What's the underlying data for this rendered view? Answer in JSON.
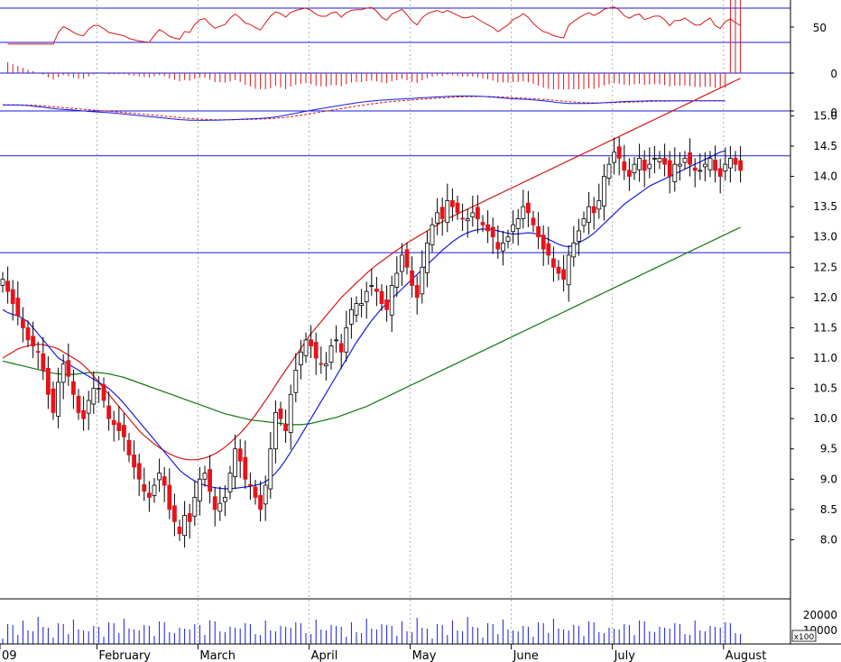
{
  "colors": {
    "up": "#ffffff",
    "down": "#e8121a",
    "outline": "#000000",
    "ma_short": "#1a1adf",
    "ma_mid": "#d81818",
    "ma_long": "#0c7a0c",
    "hline": "#1a1adf",
    "grid": "#b0b0b0",
    "volume": "#1a1adf",
    "rsi": "#d81818",
    "macd_hist": "#d81818",
    "macd": "#1a1adf",
    "macd_signal": "#d81818"
  },
  "chart_data": [
    {
      "panel": "price",
      "type": "candlestick",
      "yticks": [
        "15.0",
        "14.5",
        "14.0",
        "13.5",
        "13.0",
        "12.5",
        "12.0",
        "11.5",
        "11.0",
        "10.5",
        "10.0",
        "9.5",
        "9.0",
        "8.5",
        "8.0"
      ],
      "ylim": [
        7.5,
        15.2
      ],
      "grid": "vertical dotted",
      "x_month_labels": [
        {
          "label": "09",
          "index": 0
        },
        {
          "label": "February",
          "index": 19
        },
        {
          "label": "March",
          "index": 39
        },
        {
          "label": "April",
          "index": 61
        },
        {
          "label": "May",
          "index": 81
        },
        {
          "label": "June",
          "index": 101
        },
        {
          "label": "July",
          "index": 121
        },
        {
          "label": "August",
          "index": 143
        }
      ],
      "horizontal_lines": [
        14.34,
        12.74
      ],
      "close": [
        12.3,
        12.1,
        11.9,
        11.7,
        11.5,
        11.3,
        11.2,
        11.1,
        10.8,
        10.4,
        10.1,
        10.6,
        10.9,
        10.7,
        10.4,
        10.1,
        10.0,
        10.3,
        10.5,
        10.5,
        10.3,
        10.0,
        9.9,
        9.8,
        9.7,
        9.4,
        9.2,
        9.0,
        8.8,
        8.7,
        8.9,
        9.1,
        8.9,
        8.5,
        8.3,
        8.1,
        8.4,
        8.3,
        8.7,
        9.0,
        9.1,
        8.8,
        8.5,
        8.6,
        8.7,
        9.1,
        9.5,
        9.3,
        9.0,
        8.9,
        8.7,
        8.5,
        8.9,
        9.5,
        10.1,
        10.0,
        9.8,
        10.4,
        10.8,
        11.1,
        11.3,
        11.2,
        11.0,
        10.9,
        10.9,
        11.2,
        11.3,
        11.1,
        11.5,
        11.8,
        11.9,
        11.9,
        12.1,
        12.2,
        12.1,
        11.9,
        11.8,
        12.2,
        12.4,
        12.7,
        12.5,
        12.2,
        12.0,
        12.5,
        12.9,
        13.2,
        13.4,
        13.3,
        13.6,
        13.5,
        13.4,
        13.3,
        13.3,
        13.4,
        13.3,
        13.2,
        13.1,
        13.0,
        12.8,
        12.9,
        13.0,
        13.2,
        13.3,
        13.5,
        13.4,
        13.2,
        13.0,
        12.8,
        12.7,
        12.5,
        12.4,
        12.3,
        12.7,
        12.9,
        13.1,
        13.3,
        13.5,
        13.4,
        13.6,
        14.0,
        14.2,
        14.4,
        14.3,
        14.1,
        14.0,
        14.2,
        14.3,
        14.1,
        14.2,
        14.3,
        14.3,
        14.2,
        14.0,
        14.2,
        14.2,
        14.3,
        14.2,
        14.1,
        14.1,
        14.2,
        14.3,
        14.1,
        14.0,
        14.2,
        14.3,
        14.2,
        14.1
      ],
      "ma_short": [
        11.8,
        11.75,
        11.72,
        11.7,
        11.65,
        11.6,
        11.5,
        11.4,
        11.3,
        11.2,
        11.1,
        11.0,
        10.95,
        10.9,
        10.85,
        10.8,
        10.75,
        10.7,
        10.65,
        10.6,
        10.55,
        10.5,
        10.42,
        10.34,
        10.25,
        10.15,
        10.05,
        9.95,
        9.85,
        9.75,
        9.65,
        9.55,
        9.45,
        9.35,
        9.25,
        9.15,
        9.08,
        9.02,
        8.97,
        8.93,
        8.9,
        8.88,
        8.86,
        8.85,
        8.84,
        8.84,
        8.85,
        8.86,
        8.87,
        8.88,
        8.9,
        8.92,
        8.96,
        9.02,
        9.1,
        9.2,
        9.32,
        9.45,
        9.58,
        9.72,
        9.86,
        10.0,
        10.14,
        10.28,
        10.42,
        10.56,
        10.7,
        10.84,
        10.98,
        11.12,
        11.26,
        11.38,
        11.5,
        11.62,
        11.72,
        11.82,
        11.9,
        11.98,
        12.06,
        12.14,
        12.22,
        12.3,
        12.38,
        12.46,
        12.54,
        12.62,
        12.7,
        12.78,
        12.85,
        12.92,
        12.98,
        13.03,
        13.07,
        13.1,
        13.12,
        13.13,
        13.13,
        13.12,
        13.1,
        13.08,
        13.06,
        13.05,
        13.05,
        13.06,
        13.07,
        13.06,
        13.04,
        13.0,
        12.96,
        12.92,
        12.88,
        12.85,
        12.84,
        12.86,
        12.9,
        12.95,
        13.0,
        13.06,
        13.14,
        13.22,
        13.3,
        13.38,
        13.46,
        13.54,
        13.6,
        13.66,
        13.72,
        13.78,
        13.84,
        13.88,
        13.92,
        13.96,
        14.0,
        14.04,
        14.08,
        14.12,
        14.16,
        14.2,
        14.24,
        14.28,
        14.32,
        14.36,
        14.4,
        14.42
      ],
      "ma_mid": [
        11.0,
        11.05,
        11.1,
        11.15,
        11.18,
        11.2,
        11.22,
        11.23,
        11.22,
        11.2,
        11.18,
        11.15,
        11.1,
        11.05,
        11.0,
        10.95,
        10.88,
        10.8,
        10.7,
        10.6,
        10.5,
        10.4,
        10.3,
        10.2,
        10.1,
        10.0,
        9.9,
        9.8,
        9.72,
        9.65,
        9.58,
        9.52,
        9.47,
        9.42,
        9.38,
        9.35,
        9.33,
        9.32,
        9.32,
        9.33,
        9.35,
        9.38,
        9.42,
        9.47,
        9.53,
        9.6,
        9.68,
        9.76,
        9.85,
        9.95,
        10.06,
        10.18,
        10.3,
        10.42,
        10.55,
        10.68,
        10.8,
        10.92,
        11.04,
        11.16,
        11.28,
        11.4,
        11.5,
        11.6,
        11.7,
        11.8,
        11.9,
        12.0,
        12.08,
        12.16,
        12.24,
        12.32,
        12.4,
        12.47,
        12.54,
        12.6,
        12.66,
        12.72,
        12.78,
        12.84,
        12.9,
        12.95,
        13.0,
        13.05,
        13.1,
        13.15,
        13.2,
        13.25,
        13.3,
        13.34,
        13.38,
        13.42,
        13.46,
        13.5,
        13.54,
        13.58,
        13.62,
        13.66,
        13.7,
        13.74,
        13.78,
        13.82,
        13.86,
        13.9,
        13.94,
        13.98,
        14.02,
        14.06,
        14.1,
        14.14,
        14.18,
        14.22,
        14.26,
        14.3,
        14.34,
        14.38,
        14.42,
        14.46,
        14.5,
        14.54,
        14.58,
        14.62,
        14.66,
        14.7,
        14.74,
        14.78,
        14.82,
        14.86,
        14.9,
        14.94,
        14.98,
        15.02,
        15.06,
        15.1,
        15.14,
        15.18,
        15.22,
        15.26,
        15.3,
        15.34,
        15.38,
        15.42,
        15.46,
        15.5,
        15.54,
        15.58,
        15.62,
        15.66
      ],
      "ma_long": [
        10.95,
        10.93,
        10.91,
        10.89,
        10.87,
        10.85,
        10.83,
        10.81,
        10.79,
        10.77,
        10.75,
        10.74,
        10.73,
        10.73,
        10.73,
        10.74,
        10.75,
        10.76,
        10.76,
        10.76,
        10.75,
        10.74,
        10.72,
        10.7,
        10.68,
        10.65,
        10.62,
        10.59,
        10.56,
        10.53,
        10.5,
        10.47,
        10.44,
        10.41,
        10.38,
        10.35,
        10.32,
        10.29,
        10.26,
        10.23,
        10.2,
        10.17,
        10.14,
        10.11,
        10.08,
        10.06,
        10.04,
        10.02,
        10.0,
        9.98,
        9.97,
        9.96,
        9.95,
        9.94,
        9.93,
        9.92,
        9.91,
        9.9,
        9.9,
        9.9,
        9.91,
        9.92,
        9.94,
        9.96,
        9.98,
        10.0,
        10.02,
        10.05,
        10.08,
        10.11,
        10.14,
        10.17,
        10.2,
        10.24,
        10.28,
        10.32,
        10.36,
        10.4,
        10.44,
        10.48,
        10.52,
        10.56,
        10.6,
        10.64,
        10.68,
        10.72,
        10.76,
        10.8,
        10.84,
        10.88,
        10.92,
        10.96,
        11.0,
        11.04,
        11.08,
        11.12,
        11.16,
        11.2,
        11.24,
        11.28,
        11.32,
        11.36,
        11.4,
        11.44,
        11.48,
        11.52,
        11.56,
        11.6,
        11.64,
        11.68,
        11.72,
        11.76,
        11.8,
        11.84,
        11.88,
        11.92,
        11.96,
        12.0,
        12.04,
        12.08,
        12.12,
        12.16,
        12.2,
        12.24,
        12.28,
        12.32,
        12.36,
        12.4,
        12.44,
        12.48,
        12.52,
        12.56,
        12.6,
        12.64,
        12.68,
        12.72,
        12.76,
        12.8,
        12.84,
        12.88,
        12.92,
        12.96,
        13.0,
        13.04,
        13.08,
        13.12,
        13.16
      ]
    },
    {
      "panel": "volume",
      "type": "bar",
      "unit_label": "x100",
      "yticks": [
        "20000",
        "10000"
      ]
    },
    {
      "panel": "rsi",
      "type": "line",
      "yticks": [
        "50"
      ],
      "horizontal_lines": [
        70,
        30
      ]
    },
    {
      "panel": "macd_histogram",
      "type": "bar",
      "yticks": [
        "0"
      ]
    },
    {
      "panel": "macd",
      "type": "line",
      "yticks": [
        "0"
      ]
    }
  ]
}
